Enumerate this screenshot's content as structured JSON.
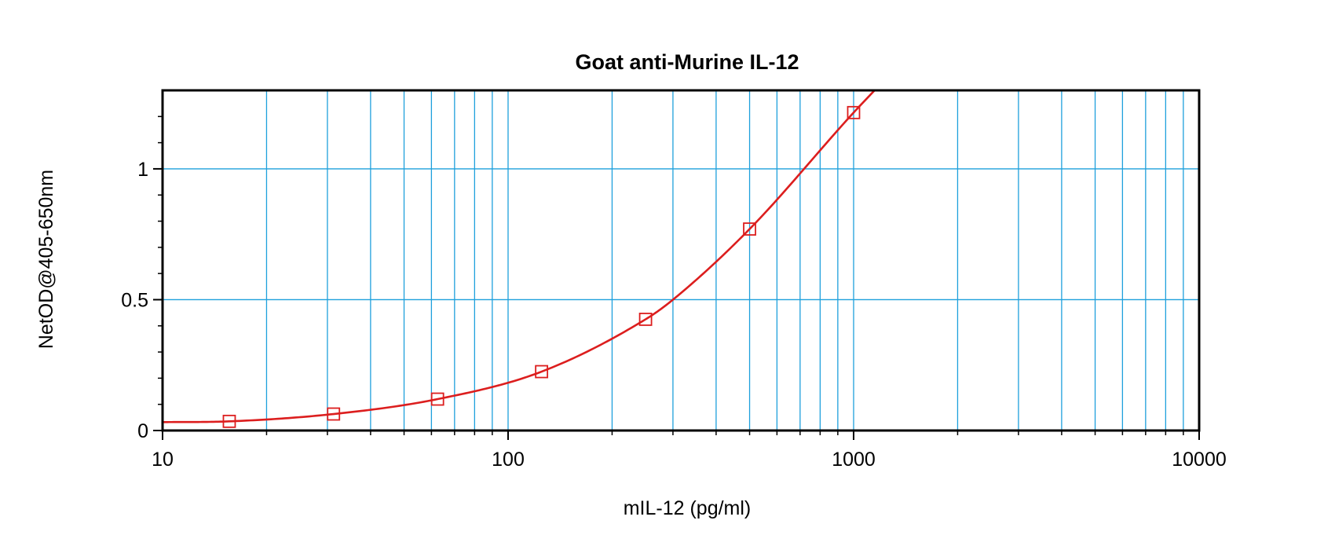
{
  "chart_data": {
    "type": "scatter",
    "title": "Goat anti-Murine IL-12",
    "xlabel": "mIL-12 (pg/ml)",
    "ylabel": "NetOD@405-650nm",
    "xscale": "log",
    "xlim": [
      10,
      10000
    ],
    "ylim": [
      0,
      1.3
    ],
    "grid": true,
    "x_ticks": [
      10,
      100,
      1000,
      10000
    ],
    "x_tick_labels": [
      "10",
      "100",
      "1000",
      "10000"
    ],
    "y_ticks": [
      0,
      0.5,
      1
    ],
    "y_tick_labels": [
      "0",
      "0.5",
      "1"
    ],
    "series": [
      {
        "marker": "square-open",
        "x": [
          15.6,
          31.25,
          62.5,
          125,
          250,
          500,
          1000
        ],
        "y": [
          0.035,
          0.063,
          0.12,
          0.225,
          0.425,
          0.77,
          1.215
        ]
      }
    ],
    "fit_curve": {
      "x": [
        10,
        15.6,
        31.25,
        62.5,
        125,
        250,
        300,
        500,
        1000,
        1150
      ],
      "y": [
        0.032,
        0.035,
        0.063,
        0.12,
        0.225,
        0.425,
        0.5,
        0.77,
        1.215,
        1.3
      ]
    },
    "colors": {
      "grid": "#1ea0dc",
      "series": "#dc1e1e",
      "axis": "#000000"
    }
  }
}
